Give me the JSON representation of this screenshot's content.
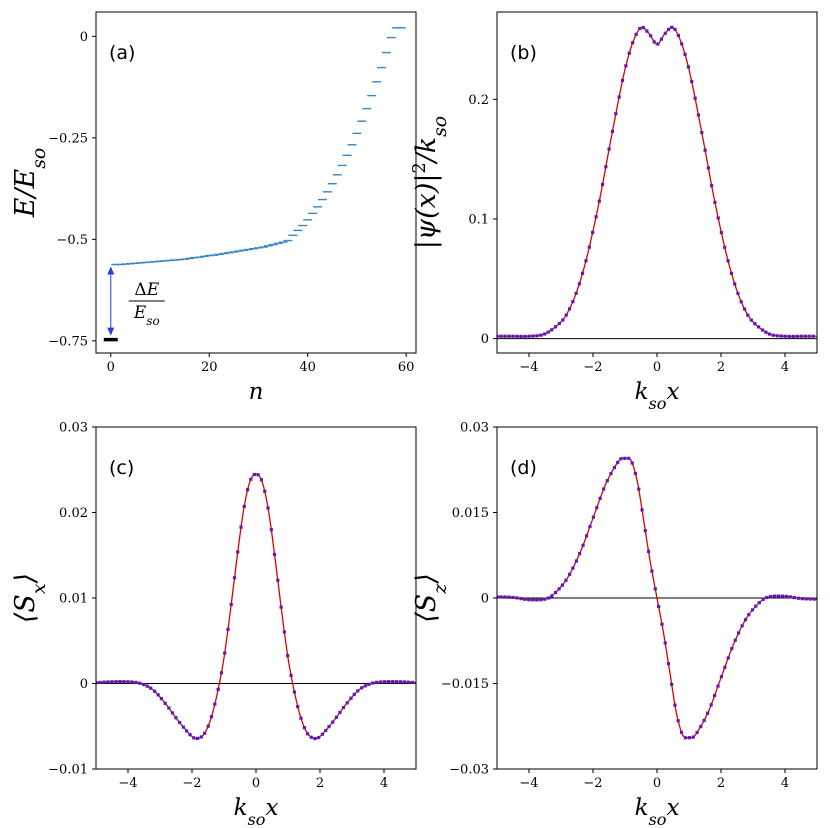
{
  "figure": {
    "panels": [
      "(a)",
      "(b)",
      "(c)",
      "(d)"
    ]
  },
  "annotation": {
    "numerator": "ΔE",
    "denominator": "E_so",
    "arrow_color": "#1f3fe0",
    "ground_level_color": "#000000"
  },
  "colors": {
    "levels": "#3b86c4",
    "curve": "#e00000",
    "markers": "#5a1bb8",
    "zero_line": "#000000"
  },
  "chart_data": [
    {
      "id": "a",
      "type": "scatter",
      "marker": "hline",
      "title": "",
      "panel_label": "(a)",
      "xlabel": "n",
      "ylabel": "E/E_so",
      "xlim": [
        -3,
        62
      ],
      "ylim": [
        -0.78,
        0.06
      ],
      "xticks": [
        0,
        20,
        40,
        60
      ],
      "xtick_labels": [
        "0",
        "20",
        "40",
        "60"
      ],
      "yticks": [
        0,
        -0.25,
        -0.5,
        -0.75
      ],
      "ytick_labels": [
        "0",
        "−0.25",
        "−0.5",
        "−0.75"
      ],
      "ground_state": {
        "n": 0,
        "E": -0.747
      },
      "n": [
        1,
        2,
        3,
        4,
        5,
        6,
        7,
        8,
        9,
        10,
        11,
        12,
        13,
        14,
        15,
        16,
        17,
        18,
        19,
        20,
        21,
        22,
        23,
        24,
        25,
        26,
        27,
        28,
        29,
        30,
        31,
        32,
        33,
        34,
        35,
        36,
        37,
        38,
        39,
        40,
        41,
        42,
        43,
        44,
        45,
        46,
        47,
        48,
        49,
        50,
        51,
        52,
        53,
        54,
        55,
        56,
        57,
        58,
        59
      ],
      "E": [
        -0.562,
        -0.562,
        -0.561,
        -0.56,
        -0.559,
        -0.558,
        -0.557,
        -0.556,
        -0.555,
        -0.554,
        -0.553,
        -0.552,
        -0.551,
        -0.55,
        -0.549,
        -0.547,
        -0.545,
        -0.544,
        -0.542,
        -0.54,
        -0.539,
        -0.537,
        -0.535,
        -0.533,
        -0.531,
        -0.529,
        -0.527,
        -0.525,
        -0.523,
        -0.521,
        -0.519,
        -0.516,
        -0.513,
        -0.51,
        -0.507,
        -0.503,
        -0.49,
        -0.478,
        -0.466,
        -0.452,
        -0.436,
        -0.42,
        -0.402,
        -0.383,
        -0.363,
        -0.341,
        -0.318,
        -0.293,
        -0.267,
        -0.239,
        -0.209,
        -0.178,
        -0.146,
        -0.112,
        -0.077,
        -0.04,
        -0.003,
        0.021,
        0.021
      ]
    },
    {
      "id": "b",
      "type": "line",
      "panel_label": "(b)",
      "xlabel": "k_so x",
      "ylabel": "|ψ(x)|²/k_so",
      "xlim": [
        -5,
        5
      ],
      "ylim": [
        -0.012,
        0.273
      ],
      "xticks": [
        -4,
        -2,
        0,
        2,
        4
      ],
      "xtick_labels": [
        "−4",
        "−2",
        "0",
        "2",
        "4"
      ],
      "yticks": [
        0,
        0.1,
        0.2
      ],
      "ytick_labels": [
        "0",
        "0.1",
        "0.2"
      ],
      "x": [
        -5.0,
        -4.5,
        -4.0,
        -3.5,
        -3.0,
        -2.75,
        -2.5,
        -2.25,
        -2.0,
        -1.75,
        -1.5,
        -1.25,
        -1.0,
        -0.75,
        -0.5,
        -0.25,
        0,
        0.25,
        0.5,
        0.75,
        1.0,
        1.25,
        1.5,
        1.75,
        2.0,
        2.25,
        2.5,
        2.75,
        3.0,
        3.5,
        4.0,
        4.5,
        5.0
      ],
      "y": [
        0.002,
        0.002,
        0.002,
        0.004,
        0.014,
        0.024,
        0.04,
        0.062,
        0.09,
        0.122,
        0.158,
        0.193,
        0.225,
        0.248,
        0.26,
        0.255,
        0.246,
        0.255,
        0.26,
        0.248,
        0.225,
        0.193,
        0.158,
        0.122,
        0.09,
        0.062,
        0.04,
        0.024,
        0.014,
        0.004,
        0.002,
        0.002,
        0.002
      ]
    },
    {
      "id": "c",
      "type": "line",
      "panel_label": "(c)",
      "xlabel": "k_so x",
      "ylabel": "⟨S_x⟩",
      "xlim": [
        -5,
        5
      ],
      "ylim": [
        -0.01,
        0.03
      ],
      "xticks": [
        -4,
        -2,
        0,
        2,
        4
      ],
      "xtick_labels": [
        "−4",
        "−2",
        "0",
        "2",
        "4"
      ],
      "yticks": [
        -0.01,
        0,
        0.01,
        0.02,
        0.03
      ],
      "ytick_labels": [
        "−0.01",
        "0",
        "0.01",
        "0.02",
        "0.03"
      ],
      "x": [
        -5.0,
        -4.5,
        -4.0,
        -3.6,
        -3.2,
        -2.8,
        -2.4,
        -2.0,
        -1.8,
        -1.6,
        -1.4,
        -1.2,
        -1.0,
        -0.8,
        -0.6,
        -0.4,
        -0.2,
        0,
        0.2,
        0.4,
        0.6,
        0.8,
        1.0,
        1.2,
        1.4,
        1.6,
        1.8,
        2.0,
        2.4,
        2.8,
        3.2,
        3.6,
        4.0,
        4.5,
        5.0
      ],
      "y": [
        0.0001,
        0.0002,
        0.0002,
        0.0,
        -0.0008,
        -0.0025,
        -0.0045,
        -0.0062,
        -0.0064,
        -0.0058,
        -0.004,
        -0.001,
        0.003,
        0.0085,
        0.0145,
        0.02,
        0.0235,
        0.0245,
        0.0235,
        0.02,
        0.0145,
        0.0085,
        0.003,
        -0.001,
        -0.004,
        -0.0058,
        -0.0064,
        -0.0062,
        -0.0045,
        -0.0025,
        -0.0008,
        0.0,
        0.0002,
        0.0002,
        0.0001
      ]
    },
    {
      "id": "d",
      "type": "line",
      "panel_label": "(d)",
      "xlabel": "k_so x",
      "ylabel": "⟨S_z⟩",
      "xlim": [
        -5,
        5
      ],
      "ylim": [
        -0.03,
        0.03
      ],
      "xticks": [
        -4,
        -2,
        0,
        2,
        4
      ],
      "xtick_labels": [
        "−4",
        "−2",
        "0",
        "2",
        "4"
      ],
      "yticks": [
        -0.03,
        -0.015,
        0,
        0.015,
        0.03
      ],
      "ytick_labels": [
        "−0.03",
        "−0.015",
        "0",
        "0.015",
        "0.03"
      ],
      "x": [
        -5.0,
        -4.5,
        -4.0,
        -3.5,
        -3.2,
        -2.8,
        -2.4,
        -2.0,
        -1.6,
        -1.2,
        -1.0,
        -0.8,
        -0.6,
        -0.4,
        -0.2,
        0,
        0.2,
        0.4,
        0.6,
        0.8,
        1.0,
        1.2,
        1.6,
        2.0,
        2.4,
        2.8,
        3.2,
        3.5,
        4.0,
        4.5,
        5.0
      ],
      "y": [
        0.0002,
        0.0001,
        -0.0003,
        -0.0002,
        0.0008,
        0.0035,
        0.008,
        0.014,
        0.02,
        0.024,
        0.0245,
        0.024,
        0.02,
        0.013,
        0.006,
        0.0,
        -0.006,
        -0.013,
        -0.02,
        -0.024,
        -0.0245,
        -0.024,
        -0.02,
        -0.014,
        -0.008,
        -0.0035,
        -0.0008,
        0.0002,
        0.0003,
        -0.0001,
        -0.0002
      ]
    }
  ]
}
